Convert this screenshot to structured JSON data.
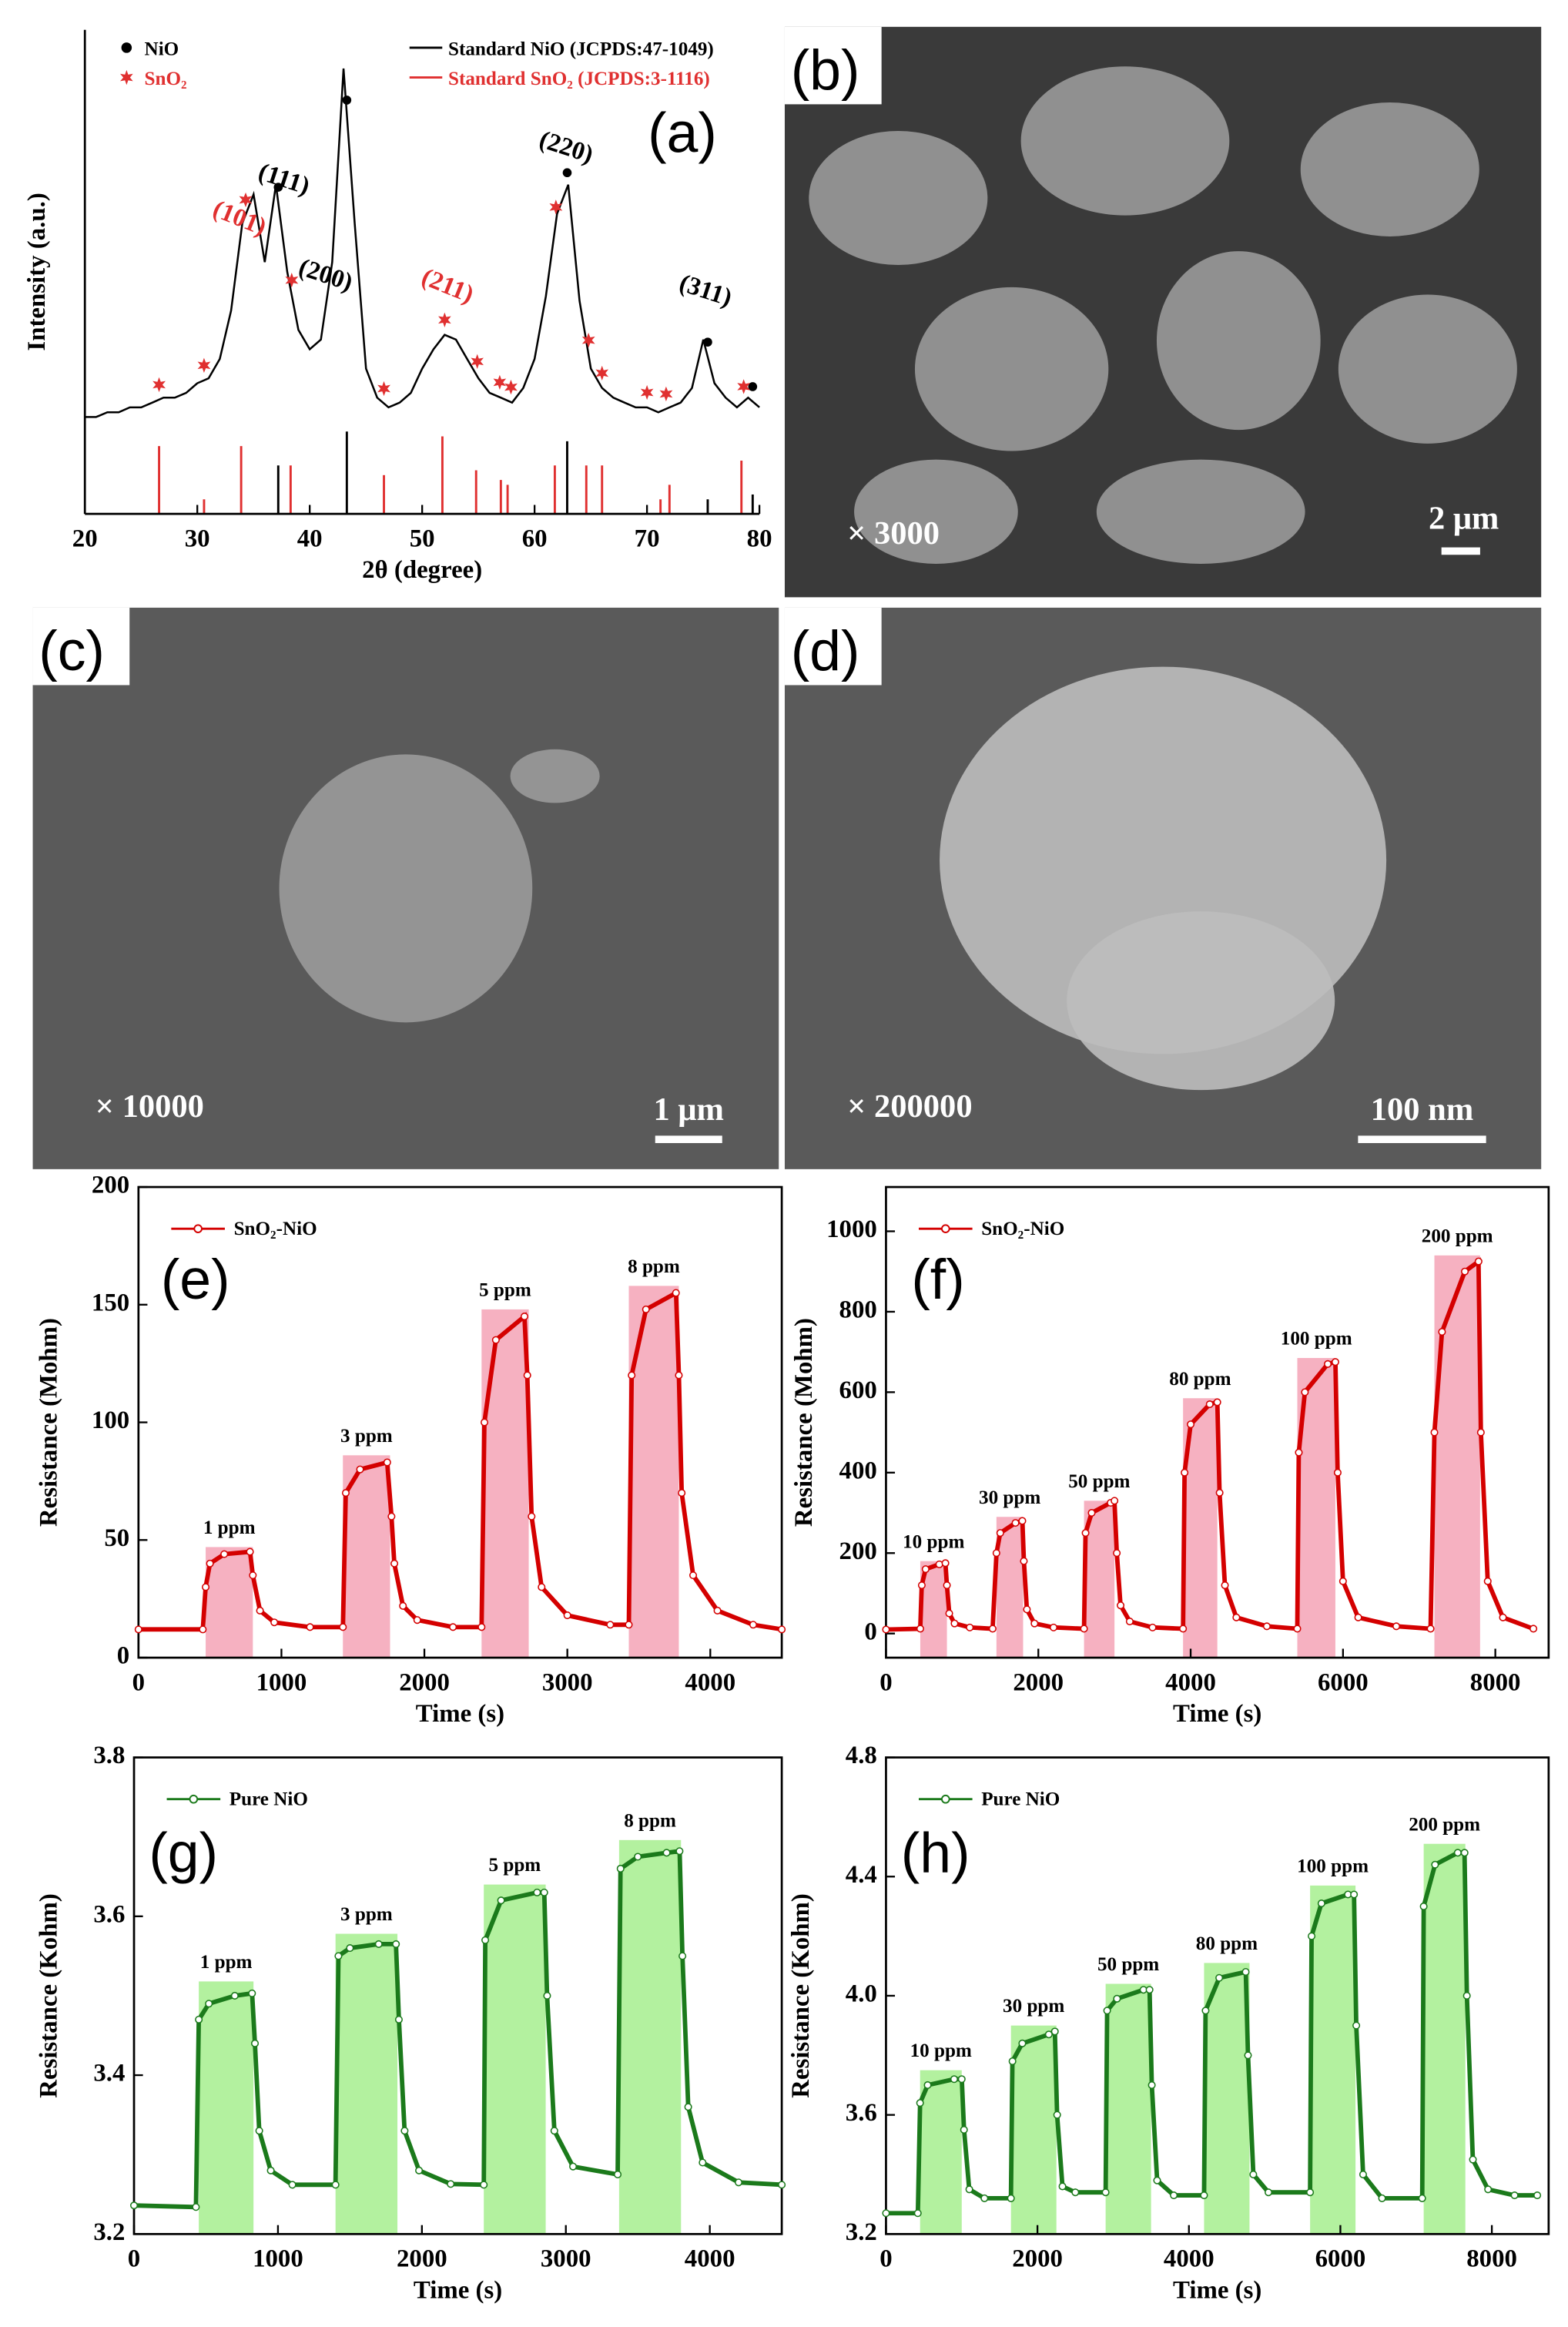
{
  "chart_data": [
    {
      "type": "line",
      "panel_label": "(a)",
      "xlabel": "2θ  (degree)",
      "ylabel": "Intensity (a.u.)",
      "xlim": [
        20,
        80
      ],
      "xticks": [
        20,
        30,
        40,
        50,
        60,
        70,
        80
      ],
      "ylim": [
        0,
        100
      ],
      "color": "#000000",
      "x": [
        20,
        21,
        22,
        23,
        24,
        25,
        26,
        27,
        28,
        29,
        30,
        31,
        32,
        33,
        34,
        35,
        36,
        37,
        38,
        39,
        40,
        41,
        42,
        43,
        44,
        45,
        46,
        47,
        48,
        49,
        50,
        51,
        52,
        53,
        54,
        55,
        56,
        57,
        58,
        59,
        60,
        61,
        62,
        63,
        64,
        65,
        66,
        67,
        68,
        69,
        70,
        71,
        72,
        73,
        74,
        75,
        76,
        77,
        78,
        79,
        80
      ],
      "values": [
        20,
        20,
        21,
        21,
        22,
        22,
        23,
        24,
        24,
        25,
        27,
        28,
        32,
        42,
        60,
        66,
        52,
        68,
        50,
        38,
        34,
        36,
        52,
        92,
        60,
        30,
        24,
        22,
        23,
        25,
        30,
        34,
        37,
        36,
        32,
        28,
        25,
        24,
        23,
        26,
        32,
        45,
        62,
        68,
        44,
        30,
        26,
        24,
        23,
        22,
        22,
        21,
        22,
        23,
        26,
        36,
        27,
        24,
        22,
        24,
        22
      ],
      "markers": [
        {
          "name": "NiO",
          "color": "#000000",
          "symbol": "dot",
          "x": [
            37.2,
            43.3,
            62.9,
            75.4,
            79.4
          ]
        },
        {
          "name": "SnO₂",
          "color": "#e03030",
          "symbol": "star",
          "x": [
            26.6,
            30.6,
            34.3,
            38.4,
            46.6,
            52.0,
            54.9,
            56.9,
            57.9,
            61.9,
            64.8,
            66.0,
            70.0,
            71.7,
            78.6
          ]
        }
      ],
      "references": [
        {
          "name": "Standard NiO (JCPDS:47-1049)",
          "color": "#000000",
          "x": [
            37.2,
            43.3,
            62.9,
            75.4,
            79.4
          ],
          "values": [
            10,
            17,
            15,
            3,
            4
          ]
        },
        {
          "name": "Standard SnO₂ (JCPDS:3-1116)",
          "color": "#e03030",
          "x": [
            26.6,
            30.6,
            33.9,
            38.3,
            46.6,
            51.8,
            54.8,
            57.0,
            57.6,
            61.8,
            64.6,
            66.0,
            71.2,
            72.0,
            78.4
          ],
          "values": [
            14,
            3,
            14,
            10,
            8,
            16,
            9,
            7,
            6,
            10,
            10,
            10,
            3,
            6,
            11
          ]
        }
      ],
      "annotations": [
        {
          "text": "(101)",
          "x": 33.5,
          "color": "#e03030"
        },
        {
          "text": "(111)",
          "x": 37.5,
          "color": "#000000"
        },
        {
          "text": "(200)",
          "x": 41.2,
          "color": "#000000"
        },
        {
          "text": "(211)",
          "x": 52.0,
          "color": "#e03030"
        },
        {
          "text": "(220)",
          "x": 62.6,
          "color": "#000000"
        },
        {
          "text": "(311)",
          "x": 75.0,
          "color": "#000000"
        }
      ]
    },
    {
      "type": "line",
      "panel_label": "(e)",
      "xlabel": "Time (s)",
      "ylabel": "Resistance (Mohm)",
      "xlim": [
        0,
        4500
      ],
      "xticks": [
        0,
        1000,
        2000,
        3000,
        4000
      ],
      "ylim": [
        0,
        200
      ],
      "yticks": [
        0,
        50,
        100,
        150,
        200
      ],
      "region_color": "#f4a3b6",
      "x": [
        0,
        450,
        470,
        500,
        600,
        780,
        800,
        850,
        950,
        1200,
        1430,
        1450,
        1550,
        1740,
        1770,
        1790,
        1850,
        1950,
        2200,
        2400,
        2420,
        2500,
        2700,
        2720,
        2750,
        2820,
        3000,
        3300,
        3430,
        3450,
        3550,
        3760,
        3780,
        3800,
        3880,
        4050,
        4300,
        4500
      ],
      "series": [
        {
          "name": "SnO₂-NiO",
          "color": "#d40000",
          "values": [
            12,
            12,
            30,
            40,
            44,
            45,
            35,
            20,
            15,
            13,
            13,
            70,
            80,
            83,
            60,
            40,
            22,
            16,
            13,
            13,
            100,
            135,
            145,
            120,
            60,
            30,
            18,
            14,
            14,
            120,
            148,
            155,
            120,
            70,
            35,
            20,
            14,
            12
          ]
        }
      ],
      "regions": [
        {
          "label": "1 ppm",
          "start": 470,
          "end": 800,
          "top": 47
        },
        {
          "label": "3 ppm",
          "start": 1430,
          "end": 1760,
          "top": 86
        },
        {
          "label": "5 ppm",
          "start": 2400,
          "end": 2730,
          "top": 148
        },
        {
          "label": "8 ppm",
          "start": 3430,
          "end": 3780,
          "top": 158
        }
      ]
    },
    {
      "type": "line",
      "panel_label": "(f)",
      "xlabel": "Time (s)",
      "ylabel": "Resistance (Mohm)",
      "xlim": [
        0,
        8700
      ],
      "xticks": [
        0,
        2000,
        4000,
        6000,
        8000
      ],
      "ylim": [
        -60,
        1110
      ],
      "yticks": [
        0,
        200,
        400,
        600,
        800,
        1000
      ],
      "region_color": "#f4a3b6",
      "x": [
        0,
        450,
        470,
        520,
        700,
        780,
        800,
        830,
        900,
        1100,
        1400,
        1450,
        1500,
        1700,
        1790,
        1810,
        1850,
        1950,
        2200,
        2600,
        2620,
        2700,
        2950,
        3000,
        3030,
        3080,
        3200,
        3500,
        3900,
        3920,
        4000,
        4250,
        4350,
        4380,
        4450,
        4600,
        5000,
        5400,
        5420,
        5500,
        5800,
        5900,
        5930,
        6000,
        6200,
        6700,
        7150,
        7200,
        7300,
        7600,
        7780,
        7810,
        7900,
        8100,
        8500
      ],
      "series": [
        {
          "name": "SnO₂-NiO",
          "color": "#d40000",
          "values": [
            10,
            12,
            120,
            160,
            172,
            175,
            120,
            50,
            25,
            15,
            12,
            200,
            250,
            275,
            280,
            180,
            60,
            25,
            15,
            12,
            250,
            300,
            325,
            330,
            200,
            70,
            30,
            15,
            12,
            400,
            520,
            570,
            575,
            350,
            120,
            40,
            18,
            12,
            450,
            600,
            670,
            675,
            400,
            130,
            40,
            18,
            12,
            500,
            750,
            900,
            925,
            500,
            130,
            40,
            12
          ]
        }
      ],
      "regions": [
        {
          "label": "10 ppm",
          "start": 450,
          "end": 800,
          "top": 180
        },
        {
          "label": "30 ppm",
          "start": 1450,
          "end": 1800,
          "top": 290
        },
        {
          "label": "50 ppm",
          "start": 2600,
          "end": 3000,
          "top": 330
        },
        {
          "label": "80 ppm",
          "start": 3900,
          "end": 4350,
          "top": 585
        },
        {
          "label": "100 ppm",
          "start": 5400,
          "end": 5900,
          "top": 685
        },
        {
          "label": "200 ppm",
          "start": 7200,
          "end": 7800,
          "top": 940
        }
      ]
    },
    {
      "type": "line",
      "panel_label": "(g)",
      "xlabel": "Time (s)",
      "ylabel": "Resistance (Kohm)",
      "xlim": [
        0,
        4500
      ],
      "xticks": [
        0,
        1000,
        2000,
        3000,
        4000
      ],
      "ylim": [
        3.2,
        3.8
      ],
      "yticks": [
        3.2,
        3.4,
        3.6,
        3.8
      ],
      "region_color": "#a6ee8e",
      "x": [
        0,
        430,
        450,
        520,
        700,
        820,
        840,
        870,
        950,
        1100,
        1400,
        1420,
        1500,
        1700,
        1820,
        1840,
        1880,
        1980,
        2200,
        2430,
        2440,
        2550,
        2800,
        2850,
        2870,
        2920,
        3050,
        3360,
        3380,
        3500,
        3700,
        3790,
        3810,
        3850,
        3950,
        4200,
        4500
      ],
      "series": [
        {
          "name": "Pure NiO",
          "color": "#1b7a1b",
          "values": [
            3.236,
            3.234,
            3.47,
            3.49,
            3.5,
            3.503,
            3.44,
            3.33,
            3.28,
            3.262,
            3.262,
            3.55,
            3.56,
            3.565,
            3.565,
            3.47,
            3.33,
            3.28,
            3.263,
            3.262,
            3.57,
            3.62,
            3.63,
            3.63,
            3.5,
            3.33,
            3.285,
            3.275,
            3.66,
            3.675,
            3.68,
            3.682,
            3.55,
            3.36,
            3.29,
            3.265,
            3.262
          ]
        }
      ],
      "regions": [
        {
          "label": "1 ppm",
          "start": 450,
          "end": 830,
          "top": 3.518
        },
        {
          "label": "3 ppm",
          "start": 1400,
          "end": 1830,
          "top": 3.578
        },
        {
          "label": "5 ppm",
          "start": 2430,
          "end": 2860,
          "top": 3.64
        },
        {
          "label": "8 ppm",
          "start": 3370,
          "end": 3800,
          "top": 3.696
        }
      ]
    },
    {
      "type": "line",
      "panel_label": "(h)",
      "xlabel": "Time (s)",
      "ylabel": "Resistance (Kohm)",
      "xlim": [
        0,
        8750
      ],
      "xticks": [
        0,
        2000,
        4000,
        6000,
        8000
      ],
      "ylim": [
        3.2,
        4.8
      ],
      "yticks": [
        3.2,
        3.6,
        {
          "value": 4,
          "label": "4.0"
        },
        4.4,
        4.8
      ],
      "region_color": "#a6ee8e",
      "x": [
        0,
        420,
        450,
        550,
        900,
        1000,
        1030,
        1100,
        1300,
        1650,
        1670,
        1800,
        2150,
        2230,
        2260,
        2330,
        2500,
        2900,
        2920,
        3050,
        3400,
        3480,
        3510,
        3580,
        3800,
        4200,
        4220,
        4400,
        4750,
        4780,
        4850,
        5050,
        5600,
        5620,
        5750,
        6100,
        6180,
        6210,
        6300,
        6550,
        7080,
        7100,
        7250,
        7550,
        7640,
        7670,
        7750,
        7950,
        8300,
        8600
      ],
      "series": [
        {
          "name": "Pure NiO",
          "color": "#1b7a1b",
          "values": [
            3.27,
            3.27,
            3.64,
            3.7,
            3.72,
            3.72,
            3.55,
            3.35,
            3.32,
            3.32,
            3.78,
            3.84,
            3.87,
            3.88,
            3.6,
            3.36,
            3.34,
            3.34,
            3.95,
            3.99,
            4.02,
            4.02,
            3.7,
            3.38,
            3.33,
            3.33,
            3.95,
            4.06,
            4.08,
            3.8,
            3.4,
            3.34,
            3.34,
            4.2,
            4.31,
            4.34,
            4.34,
            3.9,
            3.4,
            3.32,
            3.32,
            4.3,
            4.44,
            4.48,
            4.48,
            4.0,
            3.45,
            3.35,
            3.33,
            3.33
          ]
        }
      ],
      "regions": [
        {
          "label": "10 ppm",
          "start": 450,
          "end": 1000,
          "top": 3.75
        },
        {
          "label": "30 ppm",
          "start": 1650,
          "end": 2250,
          "top": 3.9
        },
        {
          "label": "50 ppm",
          "start": 2900,
          "end": 3500,
          "top": 4.04
        },
        {
          "label": "80 ppm",
          "start": 4200,
          "end": 4800,
          "top": 4.11
        },
        {
          "label": "100 ppm",
          "start": 5600,
          "end": 6200,
          "top": 4.37
        },
        {
          "label": "200 ppm",
          "start": 7100,
          "end": 7650,
          "top": 4.51
        }
      ]
    }
  ],
  "images": [
    {
      "label": "(b)",
      "magnification": "× 3000",
      "scale_bar": "2 μm"
    },
    {
      "label": "(c)",
      "magnification": "× 10000",
      "scale_bar": "1 μm"
    },
    {
      "label": "(d)",
      "magnification": "× 200000",
      "scale_bar": "100 nm"
    }
  ]
}
